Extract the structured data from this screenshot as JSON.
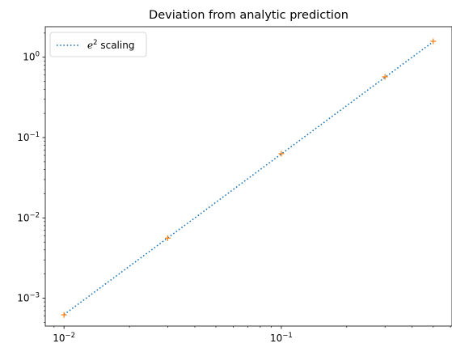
{
  "chart_data": {
    "type": "line",
    "title": "Deviation from analytic prediction",
    "xlabel": "",
    "ylabel": "",
    "xscale": "log",
    "yscale": "log",
    "xlim": [
      0.0082,
      0.61
    ],
    "ylim": [
      0.00045,
      2.4
    ],
    "grid": false,
    "legend_placement": "top-left",
    "xticks": [
      {
        "value": 0.01,
        "base": "10",
        "exp": "−2"
      },
      {
        "value": 0.1,
        "base": "10",
        "exp": "−1"
      }
    ],
    "yticks": [
      {
        "value": 0.001,
        "base": "10",
        "exp": "−3"
      },
      {
        "value": 0.01,
        "base": "10",
        "exp": "−2"
      },
      {
        "value": 0.1,
        "base": "10",
        "exp": "−1"
      },
      {
        "value": 1,
        "base": "10",
        "exp": "0"
      }
    ],
    "series": [
      {
        "name": "e² scaling",
        "legend_var": "e",
        "legend_exp": "2",
        "legend_suffix": " scaling",
        "style": "dotted",
        "color": "#1f77b4",
        "x": [
          0.01,
          0.5
        ],
        "y": [
          0.000625,
          1.5625
        ]
      },
      {
        "style": "marker-plus",
        "color": "#ff7f0e",
        "x": [
          0.01,
          0.03,
          0.1,
          0.3,
          0.5
        ],
        "y": [
          0.00062,
          0.0056,
          0.063,
          0.57,
          1.58
        ]
      }
    ]
  }
}
